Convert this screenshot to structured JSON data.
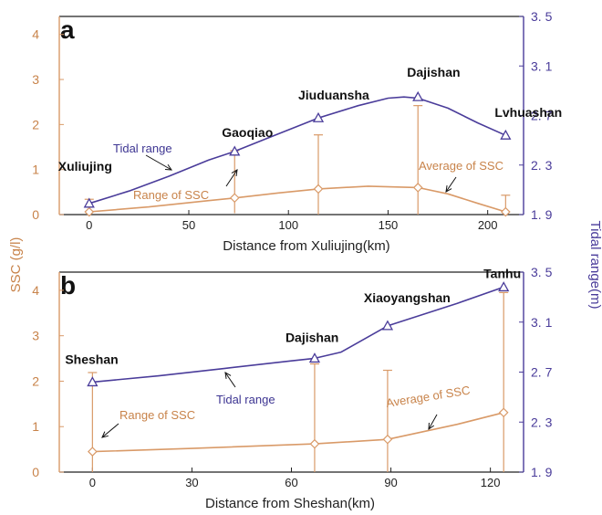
{
  "figure": {
    "left_axis_label": "SSC (g/l)",
    "right_axis_label": "Tidal range(m)"
  },
  "colors": {
    "ssc": "#d99a68",
    "ssc_text": "#c8834a",
    "tide": "#4a3c9a",
    "axis": "#222222"
  },
  "chart_data": [
    {
      "type": "line",
      "panel": "a",
      "xlabel": "Distance from Xuliujing(km)",
      "x_ticks": [
        0,
        50,
        100,
        150,
        200
      ],
      "xlim": [
        -15,
        218
      ],
      "ylim_left": [
        0,
        4.4
      ],
      "y_ticks_left": [
        "0",
        "1",
        "2",
        "3",
        "4"
      ],
      "ylim_right": [
        1.9,
        3.5
      ],
      "y_ticks_right": [
        "1. 9",
        "2. 3",
        "2. 7",
        "3. 1",
        "3. 5"
      ],
      "stations": [
        {
          "name": "Xuliujing",
          "x": 0,
          "tide": 1.99,
          "ssc_avg": 0.06,
          "ssc_min": 0.0,
          "ssc_max": 0.34
        },
        {
          "name": "Gaoqiao",
          "x": 73,
          "tide": 2.41,
          "ssc_avg": 0.37,
          "ssc_min": 0.03,
          "ssc_max": 1.42
        },
        {
          "name": "Jiuduansha",
          "x": 115,
          "tide": 2.68,
          "ssc_avg": 0.57,
          "ssc_min": 0.0,
          "ssc_max": 1.77
        },
        {
          "name": "Dajishan",
          "x": 165,
          "tide": 2.85,
          "ssc_avg": 0.6,
          "ssc_min": 0.0,
          "ssc_max": 2.42
        },
        {
          "name": "Lvhuashan",
          "x": 209,
          "tide": 2.54,
          "ssc_avg": 0.06,
          "ssc_min": 0.0,
          "ssc_max": 0.43
        }
      ],
      "series": [
        {
          "name": "Tidal range",
          "axis": "right",
          "curve_x": [
            0,
            20,
            40,
            60,
            73,
            90,
            115,
            135,
            150,
            158,
            165,
            180,
            195,
            209
          ],
          "curve_y": [
            1.99,
            2.09,
            2.21,
            2.34,
            2.41,
            2.52,
            2.68,
            2.78,
            2.84,
            2.85,
            2.84,
            2.76,
            2.64,
            2.54
          ]
        },
        {
          "name": "Average of SSC",
          "axis": "left",
          "curve_x": [
            0,
            30,
            60,
            73,
            95,
            115,
            140,
            165,
            180,
            195,
            209
          ],
          "curve_y": [
            0.06,
            0.17,
            0.31,
            0.37,
            0.48,
            0.57,
            0.63,
            0.6,
            0.46,
            0.25,
            0.06
          ]
        }
      ],
      "annotations": {
        "tidal_range": "Tidal range",
        "range_of_ssc": "Range of SSC",
        "average_of_ssc": "Average of SSC"
      }
    },
    {
      "type": "line",
      "panel": "b",
      "xlabel": "Distance from Sheshan(km)",
      "x_ticks": [
        0,
        30,
        60,
        90,
        120
      ],
      "xlim": [
        -10,
        130
      ],
      "ylim_left": [
        0,
        4.4
      ],
      "y_ticks_left": [
        "0",
        "1",
        "2",
        "3",
        "4"
      ],
      "ylim_right": [
        1.9,
        3.5
      ],
      "y_ticks_right": [
        "1. 9",
        "2. 3",
        "2. 7",
        "3. 1",
        "3. 5"
      ],
      "stations": [
        {
          "name": "Sheshan",
          "x": 0,
          "tide": 2.62,
          "ssc_avg": 0.45,
          "ssc_min": 0.0,
          "ssc_max": 2.19
        },
        {
          "name": "Dajishan",
          "x": 67,
          "tide": 2.81,
          "ssc_avg": 0.62,
          "ssc_min": 0.0,
          "ssc_max": 2.38
        },
        {
          "name": "Xiaoyangshan",
          "x": 89,
          "tide": 3.07,
          "ssc_avg": 0.72,
          "ssc_min": 0.0,
          "ssc_max": 2.24
        },
        {
          "name": "Tanhu",
          "x": 124,
          "tide": 3.38,
          "ssc_avg": 1.31,
          "ssc_min": 0.0,
          "ssc_max": 3.95
        }
      ],
      "series": [
        {
          "name": "Tidal range",
          "axis": "right",
          "curve_x": [
            0,
            20,
            40,
            60,
            67,
            75,
            89,
            110,
            124
          ],
          "curve_y": [
            2.62,
            2.67,
            2.73,
            2.79,
            2.81,
            2.86,
            3.07,
            3.25,
            3.38
          ]
        },
        {
          "name": "Average of SSC",
          "axis": "left",
          "curve_x": [
            0,
            30,
            67,
            89,
            110,
            124
          ],
          "curve_y": [
            0.45,
            0.52,
            0.62,
            0.72,
            1.05,
            1.31
          ]
        }
      ],
      "annotations": {
        "tidal_range": "Tidal range",
        "range_of_ssc": "Range of SSC",
        "average_of_ssc": "Average of SSC"
      }
    }
  ]
}
